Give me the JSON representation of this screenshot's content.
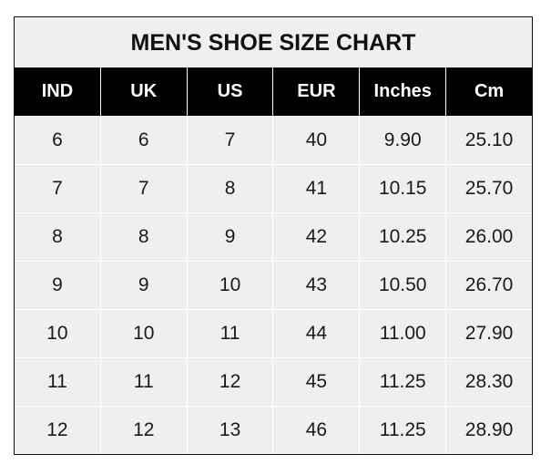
{
  "chart_data": {
    "type": "table",
    "title": "MEN'S SHOE SIZE CHART",
    "columns": [
      "IND",
      "UK",
      "US",
      "EUR",
      "Inches",
      "Cm"
    ],
    "rows": [
      [
        "6",
        "6",
        "7",
        "40",
        "9.90",
        "25.10"
      ],
      [
        "7",
        "7",
        "8",
        "41",
        "10.15",
        "25.70"
      ],
      [
        "8",
        "8",
        "9",
        "42",
        "10.25",
        "26.00"
      ],
      [
        "9",
        "9",
        "10",
        "43",
        "10.50",
        "26.70"
      ],
      [
        "10",
        "10",
        "11",
        "44",
        "11.00",
        "27.90"
      ],
      [
        "11",
        "11",
        "12",
        "45",
        "11.25",
        "28.30"
      ],
      [
        "12",
        "12",
        "13",
        "46",
        "11.25",
        "28.90"
      ]
    ],
    "colors": {
      "header_bg": "#000000",
      "header_text": "#ffffff",
      "cell_bg": "#efefef",
      "grid": "#ffffff"
    }
  }
}
